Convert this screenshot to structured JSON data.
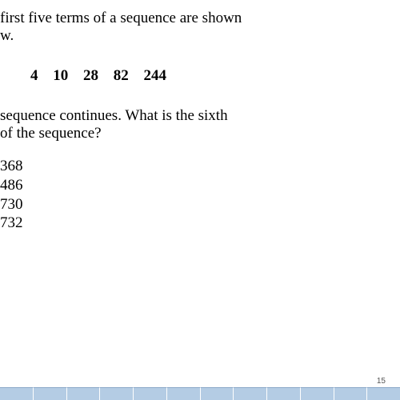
{
  "intro": {
    "line1": " first five terms of a sequence are shown",
    "line2": "w."
  },
  "sequence": "4  10  28  82  244",
  "question": {
    "line1": " sequence continues. What is the sixth",
    "line2": " of the sequence?"
  },
  "answers": [
    "368",
    "486",
    "730",
    "732"
  ],
  "pageNumber": "15",
  "barSegments": 12
}
